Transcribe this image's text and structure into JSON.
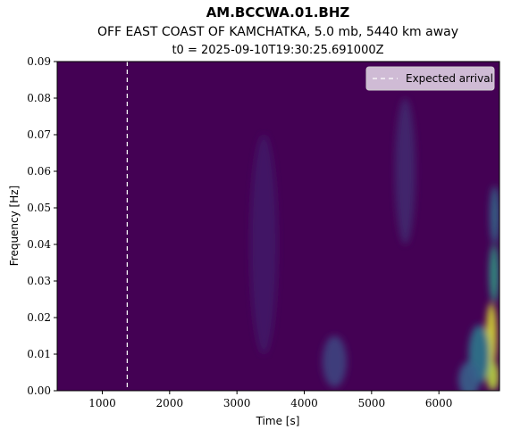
{
  "chart_data": {
    "type": "heatmap",
    "title": "AM.BCCWA.01.BHZ",
    "subtitle": "OFF EAST COAST OF KAMCHATKA, 5.0 mb, 5440 km away",
    "subtitle2": "t0 = 2025-09-10T19:30:25.691000Z",
    "xlabel": "Time [s]",
    "ylabel": "Frequency [Hz]",
    "xlim": [
      330,
      6900
    ],
    "ylim": [
      0.0,
      0.09
    ],
    "xticks": [
      1000,
      2000,
      3000,
      4000,
      5000,
      6000
    ],
    "yticks": [
      0.0,
      0.01,
      0.02,
      0.03,
      0.04,
      0.05,
      0.06,
      0.07,
      0.08,
      0.09
    ],
    "xtick_labels": [
      "1000",
      "2000",
      "3000",
      "4000",
      "5000",
      "6000"
    ],
    "ytick_labels": [
      "0.00",
      "0.01",
      "0.02",
      "0.03",
      "0.04",
      "0.05",
      "0.06",
      "0.07",
      "0.08",
      "0.09"
    ],
    "colormap": "viridis",
    "background_color": "#440154",
    "expected_arrival": 1370,
    "legend": {
      "label": "Expected arrival",
      "placement": "upper right"
    },
    "grid": false,
    "energy_blobs": [
      {
        "t": 6780,
        "f": 0.015,
        "amp": 0.95,
        "ts": 80,
        "fs": 0.009
      },
      {
        "t": 6800,
        "f": 0.004,
        "amp": 0.9,
        "ts": 90,
        "fs": 0.004
      },
      {
        "t": 6820,
        "f": 0.032,
        "amp": 0.55,
        "ts": 70,
        "fs": 0.008
      },
      {
        "t": 6830,
        "f": 0.048,
        "amp": 0.35,
        "ts": 70,
        "fs": 0.008
      },
      {
        "t": 6600,
        "f": 0.01,
        "amp": 0.4,
        "ts": 160,
        "fs": 0.008
      },
      {
        "t": 6450,
        "f": 0.003,
        "amp": 0.3,
        "ts": 160,
        "fs": 0.005
      },
      {
        "t": 4450,
        "f": 0.008,
        "amp": 0.2,
        "ts": 180,
        "fs": 0.007
      },
      {
        "t": 5500,
        "f": 0.06,
        "amp": 0.12,
        "ts": 150,
        "fs": 0.02
      },
      {
        "t": 3400,
        "f": 0.04,
        "amp": 0.08,
        "ts": 200,
        "fs": 0.03
      }
    ]
  }
}
